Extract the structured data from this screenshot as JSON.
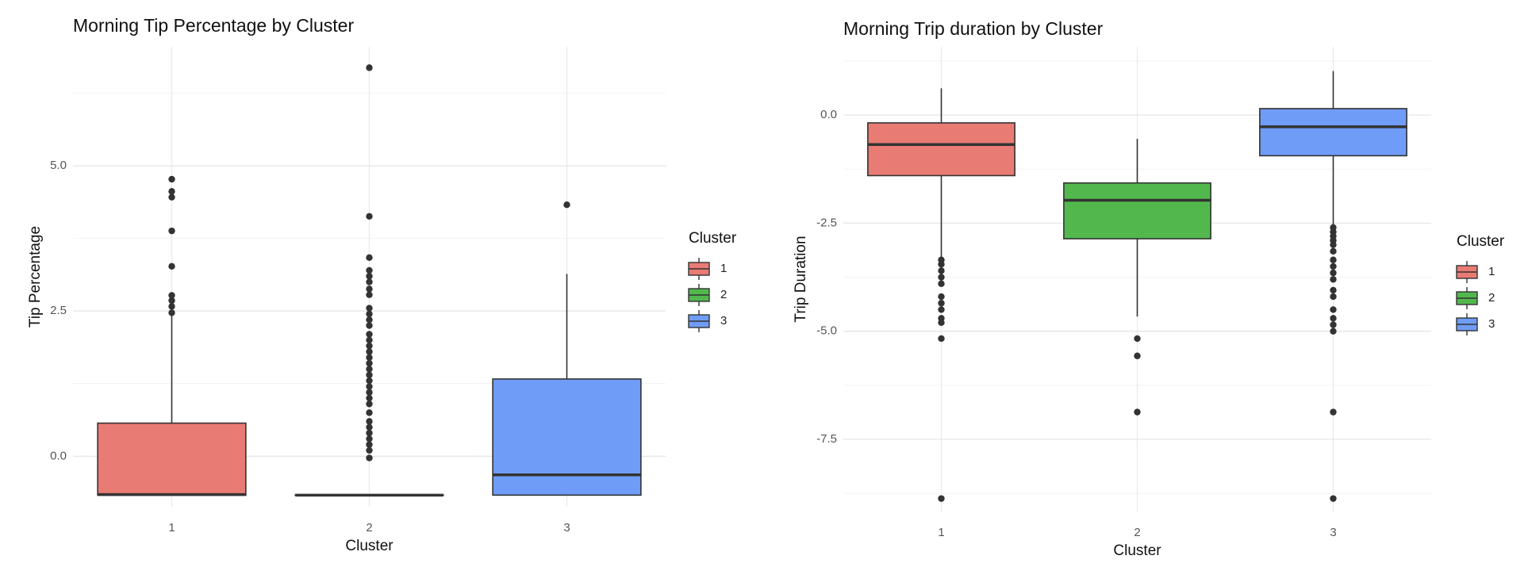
{
  "chart_data": [
    {
      "type": "box",
      "title": "Morning Tip Percentage by Cluster",
      "x_label": "Cluster",
      "y_label": "Tip Percentage",
      "legend_title": "Cluster",
      "categories": [
        "1",
        "2",
        "3"
      ],
      "ylim": [
        -0.87,
        7.05
      ],
      "yticks": [
        {
          "value": 0,
          "label": "0.0"
        },
        2.5,
        {
          "value": 5,
          "label": "5.0"
        }
      ],
      "grid": true,
      "boxes": [
        {
          "name": "1",
          "color": "#e87b73",
          "whisker_low": -0.67,
          "q1": -0.67,
          "median": -0.66,
          "q3": 0.57,
          "whisker_high": 2.43,
          "outliers": [
            4.77,
            4.56,
            4.46,
            3.88,
            3.27,
            2.77,
            2.68,
            2.58,
            2.47
          ]
        },
        {
          "name": "2",
          "color": "#52b84d",
          "whisker_low": -0.67,
          "q1": -0.67,
          "median": -0.67,
          "q3": -0.67,
          "whisker_high": -0.67,
          "outliers": [
            6.69,
            4.13,
            3.42,
            3.2,
            3.1,
            3.0,
            2.88,
            2.78,
            2.55,
            2.45,
            2.35,
            2.25,
            2.1,
            2.0,
            1.9,
            1.8,
            1.7,
            1.6,
            1.5,
            1.4,
            1.3,
            1.2,
            1.1,
            1.0,
            0.9,
            0.75,
            0.6,
            0.5,
            0.4,
            0.3,
            0.2,
            0.1,
            -0.03
          ]
        },
        {
          "name": "3",
          "color": "#6f9cf6",
          "whisker_low": -0.67,
          "q1": -0.67,
          "median": -0.32,
          "q3": 1.33,
          "whisker_high": 3.14,
          "outliers": [
            4.33
          ]
        }
      ]
    },
    {
      "type": "box",
      "title": "Morning Trip duration by Cluster",
      "x_label": "Cluster",
      "y_label": "Trip Duration",
      "legend_title": "Cluster",
      "categories": [
        "1",
        "2",
        "3"
      ],
      "ylim": [
        -9.17,
        1.58
      ],
      "yticks": [
        {
          "value": -7.5,
          "label": "-7.5"
        },
        {
          "value": -5,
          "label": "-5.0"
        },
        {
          "value": -2.5,
          "label": "-2.5"
        },
        {
          "value": 0,
          "label": "0.0"
        }
      ],
      "grid": true,
      "boxes": [
        {
          "name": "1",
          "color": "#e87b73",
          "whisker_low": -3.3,
          "q1": -1.4,
          "median": -0.68,
          "q3": -0.18,
          "whisker_high": 0.62,
          "outliers": [
            -3.35,
            -3.45,
            -3.6,
            -3.75,
            -3.9,
            -4.2,
            -4.35,
            -4.5,
            -4.7,
            -4.8,
            -5.17,
            -8.87
          ]
        },
        {
          "name": "2",
          "color": "#52b84d",
          "whisker_low": -4.66,
          "q1": -2.86,
          "median": -1.97,
          "q3": -1.57,
          "whisker_high": -0.55,
          "outliers": [
            -5.17,
            -5.57,
            -6.87
          ]
        },
        {
          "name": "3",
          "color": "#6f9cf6",
          "whisker_low": -2.55,
          "q1": -0.94,
          "median": -0.27,
          "q3": 0.15,
          "whisker_high": 1.02,
          "outliers": [
            -2.6,
            -2.7,
            -2.8,
            -2.9,
            -3.0,
            -3.15,
            -3.35,
            -3.5,
            -3.65,
            -3.8,
            -4.05,
            -4.2,
            -4.5,
            -4.7,
            -4.85,
            -5.0,
            -6.87,
            -8.87
          ]
        }
      ]
    }
  ]
}
